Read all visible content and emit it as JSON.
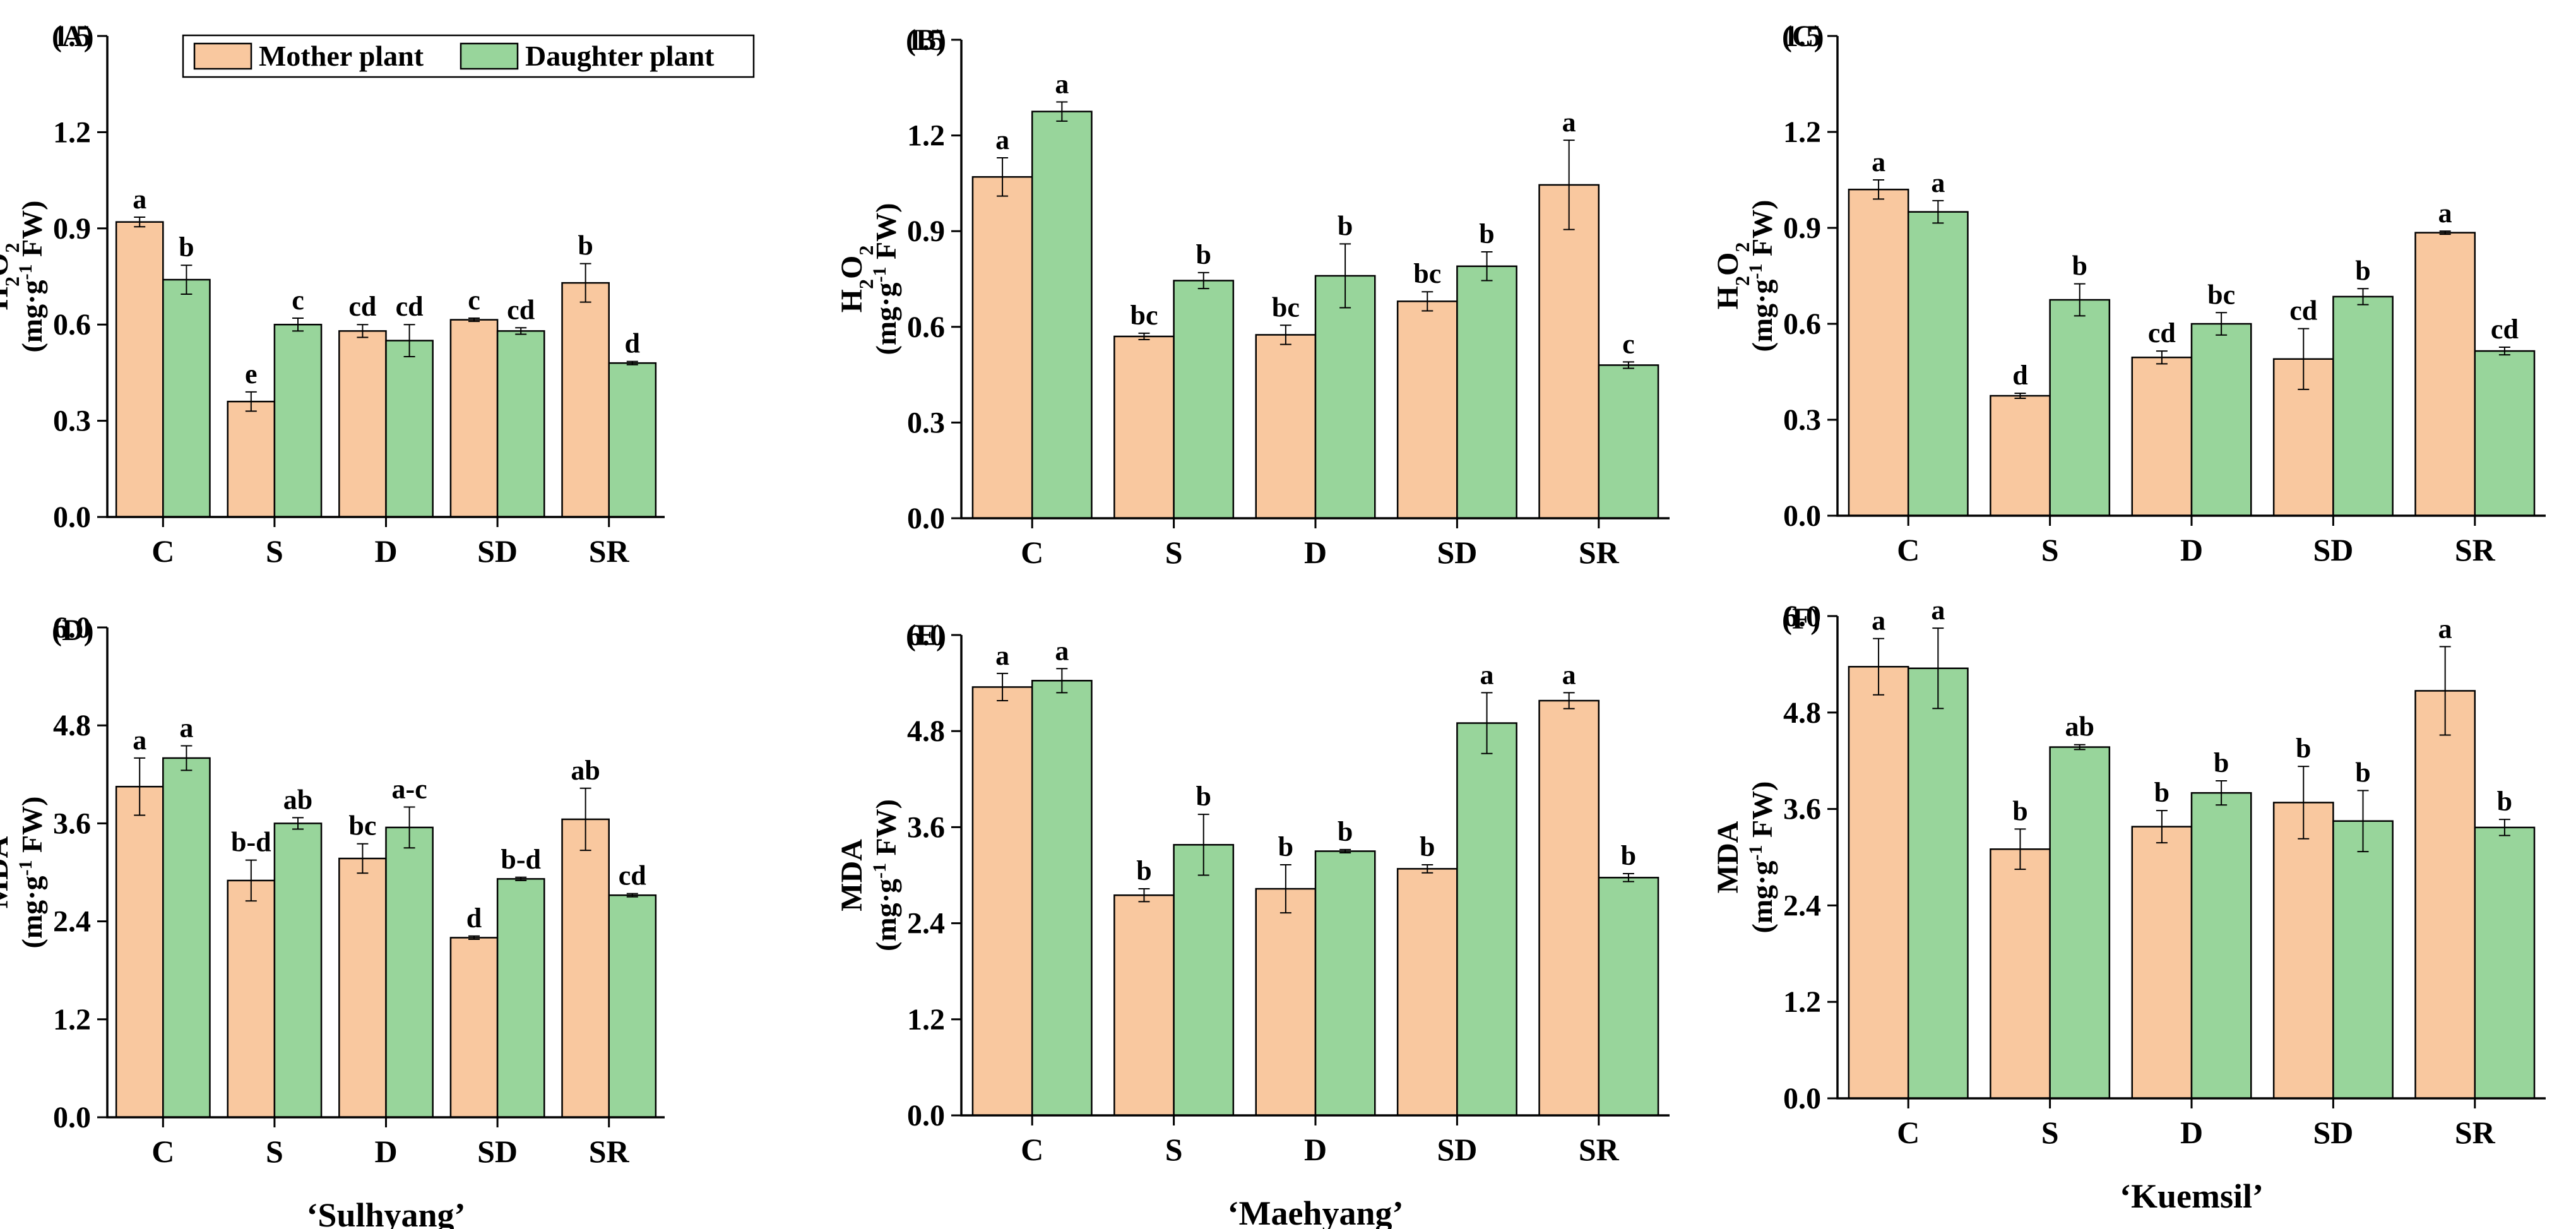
{
  "colors": {
    "mother": "#F9C89F",
    "daughter": "#98D59B",
    "axis": "#000000"
  },
  "legend": {
    "items": [
      "Mother plant",
      "Daughter plant"
    ]
  },
  "chart_data": [
    {
      "type": "bar",
      "panel_label": "(A)",
      "categories": [
        "C",
        "S",
        "D",
        "SD",
        "SR"
      ],
      "ylabel": {
        "line1_parts": [
          "H",
          "2",
          "O",
          "2"
        ],
        "line2_parts": [
          "(mg·g",
          "-1",
          " FW)"
        ]
      },
      "ylim": [
        0,
        1.5
      ],
      "yticks": [
        "0.0",
        "0.3",
        "0.6",
        "0.9",
        "1.2",
        "1.5"
      ],
      "series": [
        {
          "name": "Mother plant",
          "values": [
            0.92,
            0.36,
            0.58,
            0.615,
            0.73
          ],
          "errors": [
            0.015,
            0.03,
            0.02,
            0.005,
            0.06
          ],
          "letters": [
            "a",
            "e",
            "cd",
            "c",
            "b"
          ]
        },
        {
          "name": "Daughter plant",
          "values": [
            0.74,
            0.6,
            0.55,
            0.58,
            0.48
          ],
          "errors": [
            0.045,
            0.02,
            0.05,
            0.01,
            0.005
          ],
          "letters": [
            "b",
            "c",
            "cd",
            "cd",
            "d"
          ]
        }
      ]
    },
    {
      "type": "bar",
      "panel_label": "(B)",
      "categories": [
        "C",
        "S",
        "D",
        "SD",
        "SR"
      ],
      "ylabel": {
        "line1_parts": [
          "H",
          "2",
          "O",
          "2"
        ],
        "line2_parts": [
          "(mg·g",
          "-1",
          " FW)"
        ]
      },
      "ylim": [
        0,
        1.5
      ],
      "yticks": [
        "0.0",
        "0.3",
        "0.6",
        "0.9",
        "1.2",
        "1.5"
      ],
      "series": [
        {
          "name": "Mother plant",
          "values": [
            1.07,
            0.57,
            0.575,
            0.68,
            1.045
          ],
          "errors": [
            0.06,
            0.01,
            0.03,
            0.03,
            0.14
          ],
          "letters": [
            "a",
            "bc",
            "bc",
            "bc",
            "a"
          ]
        },
        {
          "name": "Daughter plant",
          "values": [
            1.275,
            0.745,
            0.76,
            0.79,
            0.48
          ],
          "errors": [
            0.03,
            0.025,
            0.1,
            0.045,
            0.01
          ],
          "letters": [
            "a",
            "b",
            "b",
            "b",
            "c"
          ]
        }
      ]
    },
    {
      "type": "bar",
      "panel_label": "(C)",
      "categories": [
        "C",
        "S",
        "D",
        "SD",
        "SR"
      ],
      "ylabel": {
        "line1_parts": [
          "H",
          "2",
          "O",
          "2"
        ],
        "line2_parts": [
          "(mg·g",
          "-1",
          " FW)"
        ]
      },
      "ylim": [
        0,
        1.5
      ],
      "yticks": [
        "0.0",
        "0.3",
        "0.6",
        "0.9",
        "1.2",
        "1.5"
      ],
      "series": [
        {
          "name": "Mother plant",
          "values": [
            1.02,
            0.375,
            0.495,
            0.49,
            0.885
          ],
          "errors": [
            0.03,
            0.008,
            0.02,
            0.095,
            0.005
          ],
          "letters": [
            "a",
            "d",
            "cd",
            "cd",
            "a"
          ]
        },
        {
          "name": "Daughter plant",
          "values": [
            0.95,
            0.675,
            0.6,
            0.685,
            0.515
          ],
          "errors": [
            0.035,
            0.05,
            0.035,
            0.025,
            0.012
          ],
          "letters": [
            "a",
            "b",
            "bc",
            "b",
            "cd"
          ]
        }
      ]
    },
    {
      "type": "bar",
      "panel_label": "(D)",
      "categories": [
        "C",
        "S",
        "D",
        "SD",
        "SR"
      ],
      "xlabel": "‘Sulhyang’",
      "ylabel": {
        "line1_parts": [
          "MDA"
        ],
        "line2_parts": [
          "(mg·g",
          "-1",
          " FW)"
        ]
      },
      "ylim": [
        0,
        6.0
      ],
      "yticks": [
        "0.0",
        "1.2",
        "2.4",
        "3.6",
        "4.8",
        "6.0"
      ],
      "series": [
        {
          "name": "Mother plant",
          "values": [
            4.05,
            2.9,
            3.17,
            2.2,
            3.65
          ],
          "errors": [
            0.35,
            0.25,
            0.18,
            0.02,
            0.38
          ],
          "letters": [
            "a",
            "b-d",
            "bc",
            "d",
            "ab"
          ]
        },
        {
          "name": "Daughter plant",
          "values": [
            4.4,
            3.6,
            3.55,
            2.92,
            2.72
          ],
          "errors": [
            0.15,
            0.07,
            0.25,
            0.02,
            0.02
          ],
          "letters": [
            "a",
            "ab",
            "a-c",
            "b-d",
            "cd"
          ]
        }
      ]
    },
    {
      "type": "bar",
      "panel_label": "(E)",
      "categories": [
        "C",
        "S",
        "D",
        "SD",
        "SR"
      ],
      "xlabel": "‘Maehyang’",
      "ylabel": {
        "line1_parts": [
          "MDA"
        ],
        "line2_parts": [
          "(mg·g",
          "-1",
          " FW)"
        ]
      },
      "ylim": [
        0,
        6.0
      ],
      "yticks": [
        "0.0",
        "1.2",
        "2.4",
        "3.6",
        "4.8",
        "6.0"
      ],
      "series": [
        {
          "name": "Mother plant",
          "values": [
            5.35,
            2.75,
            2.83,
            3.08,
            5.18
          ],
          "errors": [
            0.17,
            0.08,
            0.3,
            0.05,
            0.1
          ],
          "letters": [
            "a",
            "b",
            "b",
            "b",
            "a"
          ]
        },
        {
          "name": "Daughter plant",
          "values": [
            5.43,
            3.38,
            3.3,
            4.9,
            2.97
          ],
          "errors": [
            0.15,
            0.38,
            0.02,
            0.38,
            0.05
          ],
          "letters": [
            "a",
            "b",
            "b",
            "a",
            "b"
          ]
        }
      ]
    },
    {
      "type": "bar",
      "panel_label": "(F)",
      "categories": [
        "C",
        "S",
        "D",
        "SD",
        "SR"
      ],
      "xlabel": "‘Kuemsil’",
      "ylabel": {
        "line1_parts": [
          "MDA"
        ],
        "line2_parts": [
          "(mg·g",
          "-1",
          " FW)"
        ]
      },
      "ylim": [
        0,
        6.0
      ],
      "yticks": [
        "0.0",
        "1.2",
        "2.4",
        "3.6",
        "4.8",
        "6.0"
      ],
      "series": [
        {
          "name": "Mother plant",
          "values": [
            5.37,
            3.1,
            3.38,
            3.68,
            5.07
          ],
          "errors": [
            0.35,
            0.25,
            0.2,
            0.45,
            0.55
          ],
          "letters": [
            "a",
            "b",
            "b",
            "b",
            "a"
          ]
        },
        {
          "name": "Daughter plant",
          "values": [
            5.35,
            4.37,
            3.8,
            3.45,
            3.37
          ],
          "errors": [
            0.5,
            0.03,
            0.15,
            0.38,
            0.1
          ],
          "letters": [
            "a",
            "ab",
            "b",
            "b",
            "b"
          ]
        }
      ]
    }
  ]
}
